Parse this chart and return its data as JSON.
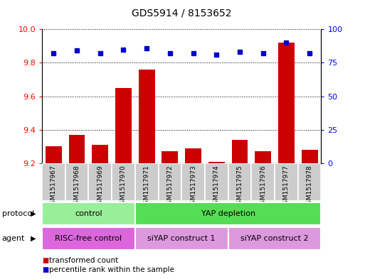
{
  "title": "GDS5914 / 8153652",
  "samples": [
    "GSM1517967",
    "GSM1517968",
    "GSM1517969",
    "GSM1517970",
    "GSM1517971",
    "GSM1517972",
    "GSM1517973",
    "GSM1517974",
    "GSM1517975",
    "GSM1517976",
    "GSM1517977",
    "GSM1517978"
  ],
  "transformed_count": [
    9.3,
    9.37,
    9.31,
    9.65,
    9.76,
    9.27,
    9.29,
    9.21,
    9.34,
    9.27,
    9.92,
    9.28
  ],
  "percentile_rank": [
    82,
    84,
    82,
    85,
    86,
    82,
    82,
    81,
    83,
    82,
    90,
    82
  ],
  "ylim_left": [
    9.2,
    10.0
  ],
  "ylim_right": [
    0,
    100
  ],
  "yticks_left": [
    9.2,
    9.4,
    9.6,
    9.8,
    10.0
  ],
  "yticks_right": [
    0,
    25,
    50,
    75,
    100
  ],
  "bar_color": "#cc0000",
  "dot_color": "#0000cc",
  "protocol_labels": [
    {
      "text": "control",
      "start": 0,
      "end": 3,
      "color": "#99ee99"
    },
    {
      "text": "YAP depletion",
      "start": 4,
      "end": 11,
      "color": "#55dd55"
    }
  ],
  "agent_labels": [
    {
      "text": "RISC-free control",
      "start": 0,
      "end": 3,
      "color": "#cc66cc"
    },
    {
      "text": "siYAP construct 1",
      "start": 4,
      "end": 7,
      "color": "#cc88cc"
    },
    {
      "text": "siYAP construct 2",
      "start": 8,
      "end": 11,
      "color": "#cc88cc"
    }
  ],
  "protocol_row_label": "protocol",
  "agent_row_label": "agent",
  "legend_bar_label": "transformed count",
  "legend_dot_label": "percentile rank within the sample",
  "sample_box_color": "#cccccc",
  "plot_bg": "#ffffff",
  "grid_color": "#000000"
}
